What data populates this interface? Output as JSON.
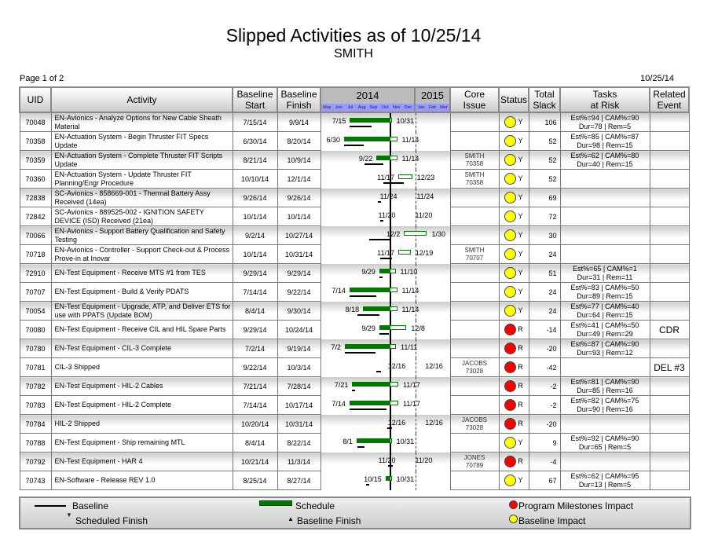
{
  "title": "Slipped Activities as of 10/25/14",
  "subtitle": "SMITH",
  "page": "Page 1 of 2",
  "report_date": "10/25/14",
  "status_date": "10/25",
  "headers": {
    "uid": "UID",
    "activity": "Activity",
    "bstart1": "Baseline",
    "bstart2": "Start",
    "bfinish1": "Baseline",
    "bfinish2": "Finish",
    "y2014": "2014",
    "y2015": "2015",
    "core1": "Core",
    "core2": "Issue",
    "status": "Status",
    "slack1": "Total",
    "slack2": "Slack",
    "tasks1": "Tasks",
    "tasks2": "at Risk",
    "rel1": "Related",
    "rel2": "Event"
  },
  "months": [
    "May",
    "Jun",
    "Jul",
    "Aug",
    "Sep",
    "Oct",
    "Nov",
    "Dec",
    "Jan",
    "Feb",
    "Mar"
  ],
  "colors": {
    "schedule": "#007a00",
    "yellow": "#ffff00",
    "red": "#ff0000"
  },
  "rows": [
    {
      "uid": "70048",
      "activity": "EN-Avionics - Analyze Options for New Cable Sheath Material",
      "bstart": "7/15/14",
      "bfinish": "9/9/14",
      "sstart": "7/15",
      "sfinish": "10/31",
      "core": "",
      "core2": "",
      "status": "Y",
      "slack": "106",
      "t1": "Est%=94 | CAM%=90",
      "t2": "Dur=78 | Rem=5",
      "event": ""
    },
    {
      "uid": "70358",
      "activity": "EN-Actuation System - Begin Thruster FIT Specs Update",
      "bstart": "6/30/14",
      "bfinish": "8/20/14",
      "sstart": "6/30",
      "sfinish": "11/14",
      "core": "",
      "core2": "",
      "status": "Y",
      "slack": "52",
      "t1": "Est%=85 | CAM%=87",
      "t2": "Dur=98 | Rem=15",
      "event": ""
    },
    {
      "uid": "70359",
      "activity": "EN-Actuation System - Complete Thruster FIT Scripts Update",
      "bstart": "8/21/14",
      "bfinish": "10/9/14",
      "sstart": "9/22",
      "sfinish": "11/14",
      "core": "SMITH",
      "core2": "70358",
      "status": "Y",
      "slack": "52",
      "t1": "Est%=62 | CAM%=80",
      "t2": "Dur=40 | Rem=15",
      "event": ""
    },
    {
      "uid": "70360",
      "activity": "EN-Actuation System - Update Thruster FIT Planning/Engr Procedure",
      "bstart": "10/10/14",
      "bfinish": "12/1/14",
      "sstart": "11/17",
      "sfinish": "12/23",
      "core": "SMITH",
      "core2": "70358",
      "status": "Y",
      "slack": "52",
      "t1": "",
      "t2": "",
      "event": ""
    },
    {
      "uid": "72838",
      "activity": "SC-Avionics - 858669-001 - Thermal Battery Assy Received (14ea)",
      "bstart": "9/26/14",
      "bfinish": "9/26/14",
      "sstart": "11/24",
      "sfinish": "11/24",
      "core": "",
      "core2": "",
      "status": "Y",
      "slack": "69",
      "t1": "",
      "t2": "",
      "event": ""
    },
    {
      "uid": "72842",
      "activity": "SC-Avionics - 889525-002 - IGNITION SAFETY DEVICE (ISD) Received (21ea)",
      "bstart": "10/1/14",
      "bfinish": "10/1/14",
      "sstart": "11/20",
      "sfinish": "11/20",
      "core": "",
      "core2": "",
      "status": "Y",
      "slack": "72",
      "t1": "",
      "t2": "",
      "event": ""
    },
    {
      "uid": "70066",
      "activity": "EN-Avionics - Support Battery Qualification and Safety Testing",
      "bstart": "9/2/14",
      "bfinish": "10/27/14",
      "sstart": "12/2",
      "sfinish": "1/30",
      "core": "",
      "core2": "",
      "status": "Y",
      "slack": "30",
      "t1": "",
      "t2": "",
      "event": ""
    },
    {
      "uid": "70718",
      "activity": "EN-Avionics - Controller - Support Check-out & Process Prove-in at Inovar",
      "bstart": "10/1/14",
      "bfinish": "10/31/14",
      "sstart": "11/17",
      "sfinish": "12/19",
      "core": "SMITH",
      "core2": "70707",
      "status": "Y",
      "slack": "24",
      "t1": "",
      "t2": "",
      "event": ""
    },
    {
      "uid": "72910",
      "activity": "EN-Test Equipment - Receive MTS #1 from TES",
      "bstart": "9/29/14",
      "bfinish": "9/29/14",
      "sstart": "9/29",
      "sfinish": "11/10",
      "core": "",
      "core2": "",
      "status": "Y",
      "slack": "51",
      "t1": "Est%=65 | CAM%=1",
      "t2": "Dur=31 | Rem=11",
      "event": ""
    },
    {
      "uid": "70707",
      "activity": "EN-Test Equipment - Build & Verify PDATS",
      "bstart": "7/14/14",
      "bfinish": "9/22/14",
      "sstart": "7/14",
      "sfinish": "11/14",
      "core": "",
      "core2": "",
      "status": "Y",
      "slack": "24",
      "t1": "Est%=83 | CAM%=50",
      "t2": "Dur=89 | Rem=15",
      "event": ""
    },
    {
      "uid": "70054",
      "activity": "EN-Test Equipment - Upgrade, ATP, and Deliver ETS for use with PPATS (Update BOM)",
      "bstart": "8/4/14",
      "bfinish": "9/30/14",
      "sstart": "8/18",
      "sfinish": "11/14",
      "core": "",
      "core2": "",
      "status": "Y",
      "slack": "24",
      "t1": "Est%=77 | CAM%=40",
      "t2": "Dur=64 | Rem=15",
      "event": ""
    },
    {
      "uid": "70080",
      "activity": "EN-Test Equipment - Receive CIL and HIL Spare Parts",
      "bstart": "9/29/14",
      "bfinish": "10/24/14",
      "sstart": "9/29",
      "sfinish": "12/8",
      "core": "",
      "core2": "",
      "status": "R",
      "slack": "-14",
      "t1": "Est%=41 | CAM%=50",
      "t2": "Dur=49 | Rem=29",
      "event": "CDR"
    },
    {
      "uid": "70780",
      "activity": "EN-Test Equipment - CIL-3 Complete",
      "bstart": "7/2/14",
      "bfinish": "9/19/14",
      "sstart": "7/2",
      "sfinish": "11/11",
      "core": "",
      "core2": "",
      "status": "R",
      "slack": "-20",
      "t1": "Est%=87 | CAM%=90",
      "t2": "Dur=93 | Rem=12",
      "event": ""
    },
    {
      "uid": "70781",
      "activity": "CIL-3 Shipped",
      "bstart": "9/22/14",
      "bfinish": "10/3/14",
      "sstart": "12/16",
      "sfinish": "12/16",
      "core": "JACOBS",
      "core2": "73028",
      "status": "R",
      "slack": "-42",
      "t1": "",
      "t2": "",
      "event": "DEL #3"
    },
    {
      "uid": "70782",
      "activity": "EN-Test Equipment - HIL-2 Cables",
      "bstart": "7/21/14",
      "bfinish": "7/28/14",
      "sstart": "7/21",
      "sfinish": "11/17",
      "core": "",
      "core2": "",
      "status": "R",
      "slack": "-2",
      "t1": "Est%=81 | CAM%=90",
      "t2": "Dur=85 | Rem=16",
      "event": ""
    },
    {
      "uid": "70783",
      "activity": "EN-Test Equipment - HIL-2 Complete",
      "bstart": "7/14/14",
      "bfinish": "10/17/14",
      "sstart": "7/14",
      "sfinish": "11/17",
      "core": "",
      "core2": "",
      "status": "R",
      "slack": "-2",
      "t1": "Est%=82 | CAM%=75",
      "t2": "Dur=90 | Rem=16",
      "event": ""
    },
    {
      "uid": "70784",
      "activity": "HIL-2 Shipped",
      "bstart": "10/20/14",
      "bfinish": "10/31/14",
      "sstart": "12/16",
      "sfinish": "12/16",
      "core": "JACOBS",
      "core2": "73028",
      "status": "R",
      "slack": "-20",
      "t1": "",
      "t2": "",
      "event": ""
    },
    {
      "uid": "70788",
      "activity": "EN-Test Equipment - Ship remaining MTL",
      "bstart": "8/4/14",
      "bfinish": "8/22/14",
      "sstart": "8/1",
      "sfinish": "10/31",
      "core": "",
      "core2": "",
      "status": "Y",
      "slack": "9",
      "t1": "Est%=92 | CAM%=90",
      "t2": "Dur=65 | Rem=5",
      "event": ""
    },
    {
      "uid": "70792",
      "activity": "EN-Test Equipment - HAR 4",
      "bstart": "10/21/14",
      "bfinish": "11/3/14",
      "sstart": "11/20",
      "sfinish": "11/20",
      "core": "JONES",
      "core2": "70789",
      "status": "R",
      "slack": "-4",
      "t1": "",
      "t2": "",
      "event": ""
    },
    {
      "uid": "70743",
      "activity": "EN-Software - Release REV 1.0",
      "bstart": "8/25/14",
      "bfinish": "8/27/14",
      "sstart": "10/15",
      "sfinish": "10/31",
      "core": "",
      "core2": "",
      "status": "Y",
      "slack": "67",
      "t1": "Est%=62 | CAM%=95",
      "t2": "Dur=13 | Rem=5",
      "event": ""
    }
  ],
  "legend": {
    "baseline": "Baseline",
    "schedule": "Schedule",
    "milestones": "Program Milestones Impact",
    "sched_finish": "Scheduled  Finish",
    "base_finish": "Baseline  Finish",
    "baseline_impact": "Baseline Impact"
  }
}
